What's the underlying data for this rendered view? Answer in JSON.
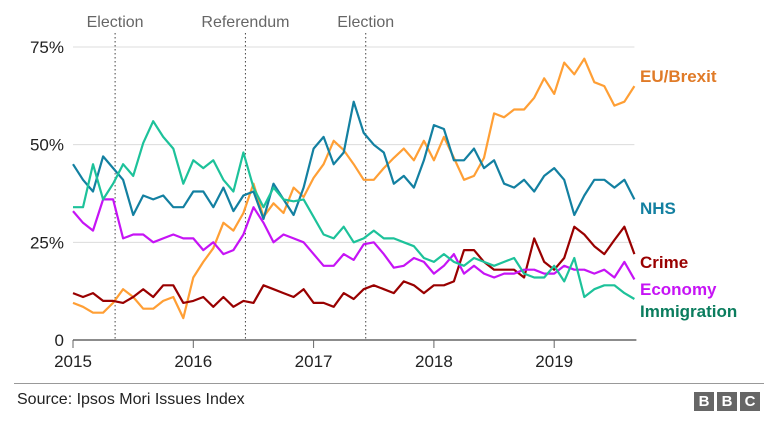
{
  "chart_data": {
    "type": "line",
    "x_start": "2015-01",
    "x_end": "2019-09",
    "x_frequency": "monthly",
    "x_ticks": [
      "2015",
      "2016",
      "2017",
      "2018",
      "2019"
    ],
    "y_ticks": [
      "0",
      "25%",
      "50%",
      "75%"
    ],
    "ylim": [
      0,
      75
    ],
    "grid": "horizontal",
    "legend": "direct labels at line ends, right",
    "events": [
      {
        "label": "Election",
        "date": "2015-05"
      },
      {
        "label": "Referendum",
        "date": "2016-06"
      },
      {
        "label": "Election",
        "date": "2017-06"
      }
    ],
    "series": [
      {
        "name": "EU/Brexit",
        "color": "#ff9f35",
        "label_color": "#e07b28",
        "values": [
          9.5,
          8.5,
          7,
          7,
          9.5,
          13,
          11,
          8,
          8,
          10,
          11,
          5.6,
          16,
          20,
          23.5,
          30,
          28,
          32.5,
          40,
          31.5,
          35,
          32.5,
          39,
          36.6,
          41.5,
          45,
          51,
          48.6,
          45,
          41,
          41,
          44,
          46.6,
          49,
          46,
          51,
          46,
          52,
          46.6,
          41,
          42,
          46.6,
          58,
          57,
          59,
          59,
          62,
          67,
          63,
          71,
          68,
          72,
          66,
          65,
          60,
          61,
          65
        ]
      },
      {
        "name": "NHS",
        "color": "#1380a1",
        "label_color": "#1380a1",
        "values": [
          45,
          41,
          38,
          47,
          44,
          41,
          32,
          37,
          36,
          37,
          34,
          34,
          38,
          38,
          34,
          39,
          33,
          37,
          38,
          31,
          40,
          36,
          32,
          39,
          49,
          52,
          45,
          48,
          61,
          53,
          50,
          48,
          40,
          42,
          39,
          46,
          55,
          54,
          46,
          46,
          49,
          44,
          46,
          40,
          39,
          41,
          38,
          42,
          44,
          41,
          32,
          37,
          41,
          41,
          39,
          41,
          36
        ]
      },
      {
        "name": "Crime",
        "color": "#990000",
        "label_color": "#990000",
        "values": [
          12,
          11,
          12,
          10,
          10,
          9.5,
          11,
          13,
          11,
          14,
          14,
          9.5,
          10,
          11,
          8.5,
          11,
          8.5,
          10,
          9.5,
          14,
          13,
          12,
          11,
          13,
          9.5,
          9.5,
          8.5,
          12,
          10.5,
          13,
          14,
          13,
          12,
          15,
          14,
          12,
          14,
          14,
          15,
          23,
          23,
          20,
          18,
          18,
          18,
          16,
          26,
          20,
          18,
          21,
          29,
          27,
          24,
          22,
          25.6,
          29,
          22
        ]
      },
      {
        "name": "Economy",
        "color": "#c614f5",
        "label_color": "#c614f5",
        "values": [
          33,
          30,
          28,
          36,
          36,
          26,
          27,
          27,
          25,
          26,
          27,
          26,
          26,
          23,
          25,
          22,
          23,
          27,
          34,
          30,
          25,
          27,
          26,
          25,
          22,
          19,
          19,
          22,
          20.5,
          24.5,
          25,
          22,
          18.5,
          19,
          21,
          20,
          17,
          19,
          22,
          17,
          19,
          17,
          16,
          17,
          17,
          18,
          18,
          17,
          17,
          19,
          18,
          18,
          17,
          18,
          16,
          20,
          15.5
        ]
      },
      {
        "name": "Immigration",
        "color": "#1dc29a",
        "label_color": "#0b7d5e",
        "values": [
          34,
          34,
          45,
          36,
          40,
          45,
          42,
          50.4,
          56,
          52,
          49,
          40,
          46,
          44,
          46,
          41,
          38,
          48,
          39,
          34,
          39,
          36,
          35.5,
          36,
          31.5,
          27,
          26,
          29,
          25,
          26,
          28,
          26,
          26,
          25,
          24,
          21,
          20,
          22,
          20,
          19,
          21,
          20,
          19,
          20,
          21,
          17,
          16,
          16,
          19,
          15,
          21,
          11,
          13,
          14,
          14,
          12,
          10.5
        ]
      }
    ]
  },
  "source": "Source: Ipsos Mori Issues Index",
  "logo": [
    "B",
    "B",
    "C"
  ]
}
